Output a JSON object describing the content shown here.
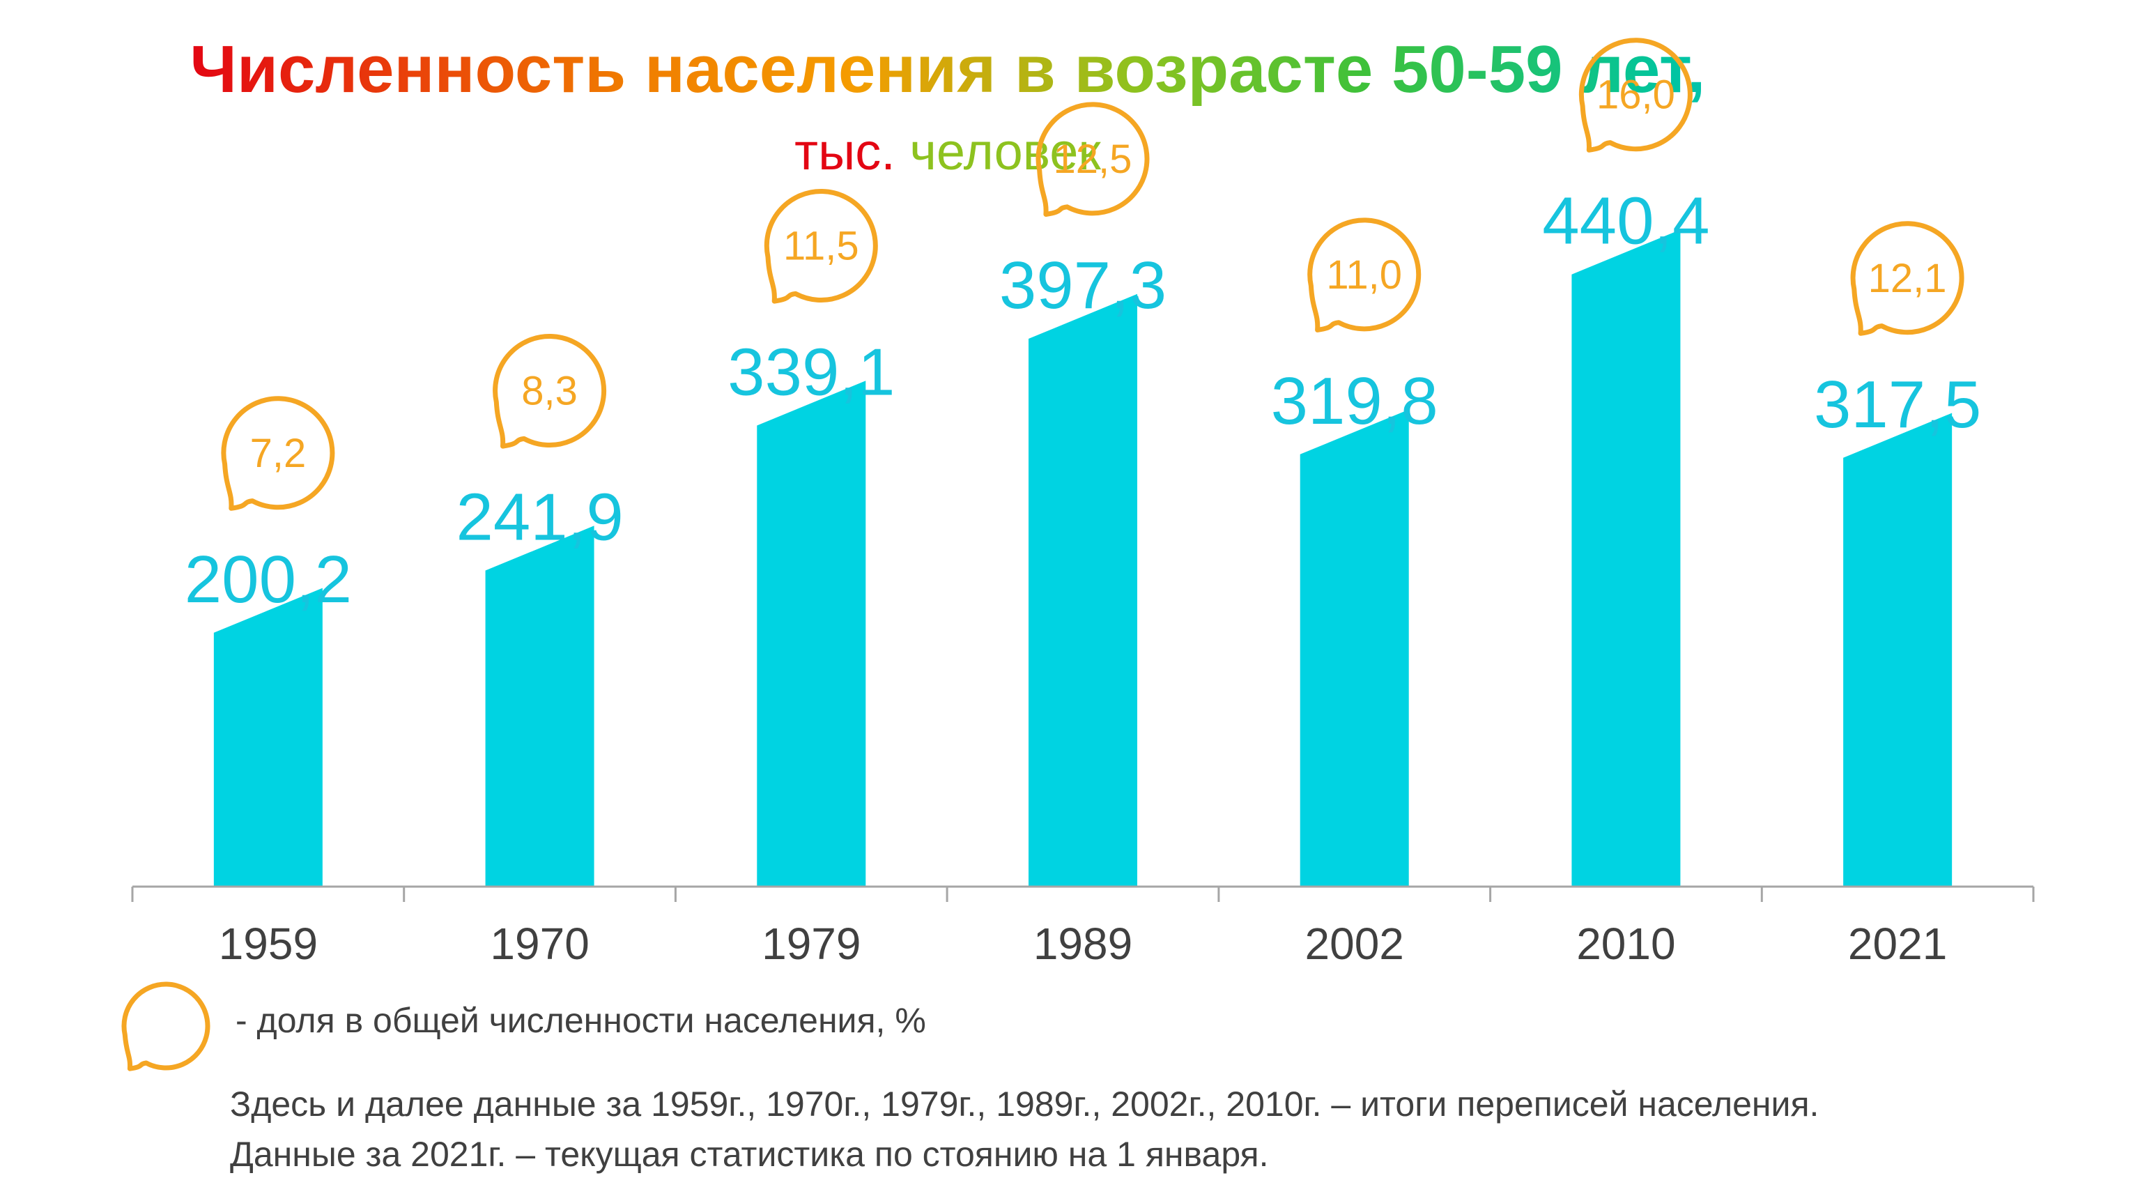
{
  "chart_data": {
    "type": "bar",
    "title": "Численность населения в возрасте 50-59 лет,",
    "subtitle_part1": "тыс.",
    "subtitle_part2": "человек",
    "categories": [
      "1959",
      "1970",
      "1979",
      "1989",
      "2002",
      "2010",
      "2021"
    ],
    "values": [
      200.2,
      241.9,
      339.1,
      397.3,
      319.8,
      440.4,
      317.5
    ],
    "value_labels": [
      "200,2",
      "241,9",
      "339,1",
      "397,3",
      "319,8",
      "440,4",
      "317,5"
    ],
    "shares": [
      7.2,
      8.3,
      11.5,
      12.5,
      11.0,
      16.0,
      12.1
    ],
    "share_labels": [
      "7,2",
      "8,3",
      "11,5",
      "12,5",
      "11,0",
      "16,0",
      "12,1"
    ],
    "colors": {
      "bar": "#00d3e2",
      "value_label": "#16c4de",
      "bubble": "#f5a623",
      "axis": "#a6a6a6",
      "tick_label": "#404040"
    }
  },
  "legend": {
    "bubble_text": "- доля в общей численности населения, %"
  },
  "notes": {
    "line1": "Здесь и далее данные за 1959г., 1970г., 1979г., 1989г., 2002г., 2010г. – итоги переписей населения.",
    "line2": "Данные за 2021г. – текущая статистика по стоянию на 1 января."
  }
}
